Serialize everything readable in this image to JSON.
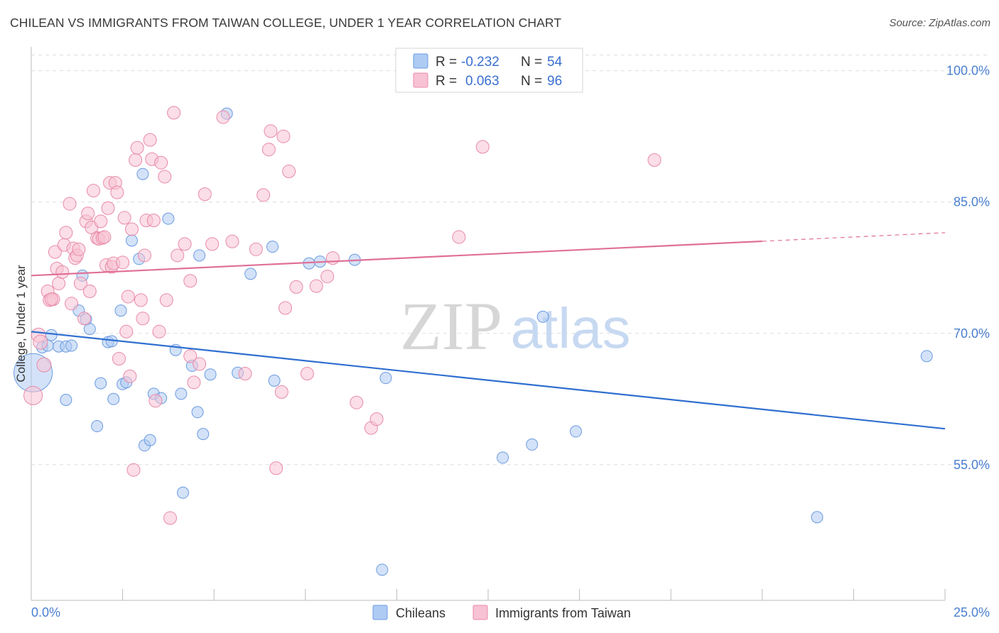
{
  "header": {
    "title": "CHILEAN VS IMMIGRANTS FROM TAIWAN COLLEGE, UNDER 1 YEAR CORRELATION CHART",
    "source": "Source: ZipAtlas.com"
  },
  "watermark": {
    "zip": "ZIP",
    "atlas": "atlas"
  },
  "colors": {
    "blue_fill": "#aecbf3",
    "blue_stroke": "#6b9be0",
    "blue_line": "#2f6fd0",
    "pink_fill": "#f7c2d3",
    "pink_stroke": "#e88aa8",
    "pink_line": "#e07098",
    "tick_text": "#4a7fd0",
    "grid": "#dddddd"
  },
  "legend": {
    "rows": [
      {
        "r_label": "R =",
        "r_value": "-0.232",
        "n_label": "N =",
        "n_value": "54"
      },
      {
        "r_label": "R =",
        "r_value": "0.063",
        "n_label": "N =",
        "n_value": "96"
      }
    ]
  },
  "chart_data": {
    "type": "scatter",
    "title": "CHILEAN VS IMMIGRANTS FROM TAIWAN COLLEGE, UNDER 1 YEAR CORRELATION CHART",
    "xlabel": "",
    "ylabel": "College, Under 1 year",
    "xlim": [
      0,
      25
    ],
    "ylim": [
      39.5,
      102
    ],
    "x_tick_labels": [
      "0.0%",
      "25.0%"
    ],
    "y_ticks": [
      100,
      85,
      70,
      55
    ],
    "y_tick_labels": [
      "100.0%",
      "85.0%",
      "70.0%",
      "55.0%"
    ],
    "series": [
      {
        "name": "Chileans",
        "color": "#aecbf3",
        "r": -0.232,
        "n": 54,
        "trend": {
          "x0": 0.0,
          "y0": 70.2,
          "x1": 25.0,
          "y1": 59.1,
          "dashed_from": null
        },
        "points": [
          [
            0.05,
            65.5,
            26
          ],
          [
            0.3,
            68.4,
            7
          ],
          [
            0.45,
            68.6,
            7
          ],
          [
            0.55,
            69.8,
            7
          ],
          [
            0.75,
            68.5,
            7
          ],
          [
            0.95,
            68.5,
            7
          ],
          [
            1.1,
            68.6,
            7
          ],
          [
            0.95,
            62.4,
            7
          ],
          [
            1.4,
            76.6,
            7
          ],
          [
            1.3,
            72.6,
            7
          ],
          [
            1.5,
            71.6,
            7
          ],
          [
            1.6,
            70.5,
            7
          ],
          [
            1.8,
            59.4,
            7
          ],
          [
            1.9,
            64.3,
            7
          ],
          [
            2.1,
            69.0,
            7
          ],
          [
            2.2,
            69.1,
            7
          ],
          [
            2.25,
            62.5,
            7
          ],
          [
            2.45,
            72.6,
            7
          ],
          [
            2.5,
            64.2,
            7
          ],
          [
            2.6,
            64.4,
            7
          ],
          [
            2.75,
            80.6,
            7
          ],
          [
            2.95,
            78.5,
            7
          ],
          [
            3.05,
            88.2,
            7
          ],
          [
            3.1,
            57.2,
            7
          ],
          [
            3.25,
            57.8,
            7
          ],
          [
            3.35,
            63.1,
            7
          ],
          [
            3.55,
            62.6,
            7
          ],
          [
            3.75,
            83.1,
            7
          ],
          [
            3.95,
            68.1,
            7
          ],
          [
            4.1,
            63.1,
            7
          ],
          [
            4.15,
            51.8,
            7
          ],
          [
            4.4,
            66.3,
            7
          ],
          [
            4.55,
            61.0,
            7
          ],
          [
            4.6,
            78.9,
            7
          ],
          [
            4.7,
            58.5,
            7
          ],
          [
            4.9,
            65.3,
            7
          ],
          [
            5.35,
            95.1,
            7
          ],
          [
            5.65,
            65.5,
            7
          ],
          [
            6.0,
            76.8,
            7
          ],
          [
            6.6,
            79.9,
            7
          ],
          [
            6.65,
            64.6,
            7
          ],
          [
            7.6,
            78.0,
            7
          ],
          [
            7.9,
            78.2,
            7
          ],
          [
            8.85,
            78.4,
            7
          ],
          [
            9.7,
            64.9,
            7
          ],
          [
            9.6,
            43.0,
            7
          ],
          [
            12.9,
            55.8,
            7
          ],
          [
            13.7,
            57.3,
            7
          ],
          [
            14.0,
            71.9,
            7
          ],
          [
            14.9,
            58.8,
            7
          ],
          [
            21.5,
            49.0,
            7
          ],
          [
            24.5,
            67.4,
            7
          ]
        ]
      },
      {
        "name": "Immigrants from Taiwan",
        "color": "#f7c2d3",
        "r": 0.063,
        "n": 96,
        "trend": {
          "x0": 0.0,
          "y0": 76.6,
          "x1": 25.0,
          "y1": 81.5,
          "dashed_from": 20.0
        },
        "points": [
          [
            0.05,
            62.9,
            12
          ],
          [
            0.2,
            69.8,
            9
          ],
          [
            0.35,
            66.4,
            9
          ],
          [
            0.25,
            69.0,
            9
          ],
          [
            0.45,
            74.8,
            8
          ],
          [
            0.5,
            73.8,
            8
          ],
          [
            0.6,
            73.9,
            8
          ],
          [
            0.55,
            73.9,
            8
          ],
          [
            0.65,
            79.3,
            8
          ],
          [
            0.7,
            77.4,
            8
          ],
          [
            0.75,
            75.7,
            8
          ],
          [
            0.85,
            77.0,
            8
          ],
          [
            0.9,
            80.1,
            8
          ],
          [
            0.95,
            81.5,
            8
          ],
          [
            1.05,
            84.8,
            8
          ],
          [
            1.1,
            73.4,
            8
          ],
          [
            1.15,
            79.7,
            8
          ],
          [
            1.2,
            78.6,
            8
          ],
          [
            1.25,
            78.9,
            8
          ],
          [
            1.3,
            79.6,
            8
          ],
          [
            1.35,
            75.7,
            8
          ],
          [
            1.45,
            71.7,
            8
          ],
          [
            1.5,
            82.8,
            8
          ],
          [
            1.55,
            83.7,
            8
          ],
          [
            1.6,
            74.8,
            8
          ],
          [
            1.65,
            82.1,
            8
          ],
          [
            1.7,
            86.3,
            8
          ],
          [
            1.8,
            80.9,
            8
          ],
          [
            1.85,
            80.8,
            8
          ],
          [
            1.9,
            82.8,
            8
          ],
          [
            1.95,
            80.9,
            8
          ],
          [
            2.0,
            81.0,
            8
          ],
          [
            2.05,
            77.8,
            8
          ],
          [
            2.1,
            84.3,
            8
          ],
          [
            2.15,
            87.2,
            8
          ],
          [
            2.2,
            77.6,
            8
          ],
          [
            2.25,
            78.0,
            8
          ],
          [
            2.3,
            87.2,
            8
          ],
          [
            2.35,
            86.1,
            8
          ],
          [
            2.4,
            67.1,
            8
          ],
          [
            2.5,
            78.1,
            8
          ],
          [
            2.55,
            83.2,
            8
          ],
          [
            2.6,
            70.2,
            8
          ],
          [
            2.65,
            74.2,
            8
          ],
          [
            2.7,
            65.1,
            8
          ],
          [
            2.75,
            81.9,
            8
          ],
          [
            2.8,
            54.4,
            8
          ],
          [
            2.85,
            89.8,
            8
          ],
          [
            2.9,
            91.2,
            8
          ],
          [
            3.0,
            73.8,
            8
          ],
          [
            3.05,
            71.7,
            8
          ],
          [
            3.1,
            78.9,
            8
          ],
          [
            3.15,
            82.9,
            8
          ],
          [
            3.25,
            92.1,
            8
          ],
          [
            3.3,
            89.9,
            8
          ],
          [
            3.35,
            82.9,
            8
          ],
          [
            3.4,
            62.3,
            8
          ],
          [
            3.5,
            70.2,
            8
          ],
          [
            3.55,
            89.5,
            8
          ],
          [
            3.65,
            87.9,
            8
          ],
          [
            3.7,
            73.8,
            8
          ],
          [
            3.8,
            48.9,
            8
          ],
          [
            3.9,
            95.2,
            8
          ],
          [
            4.0,
            78.9,
            8
          ],
          [
            4.2,
            80.2,
            8
          ],
          [
            4.35,
            76.0,
            8
          ],
          [
            4.35,
            67.4,
            8
          ],
          [
            4.45,
            64.4,
            8
          ],
          [
            4.6,
            66.5,
            8
          ],
          [
            4.75,
            85.9,
            8
          ],
          [
            4.95,
            80.2,
            8
          ],
          [
            5.25,
            94.7,
            8
          ],
          [
            5.5,
            80.5,
            8
          ],
          [
            5.85,
            65.4,
            8
          ],
          [
            6.15,
            79.6,
            8
          ],
          [
            6.35,
            85.8,
            8
          ],
          [
            6.5,
            91.0,
            8
          ],
          [
            6.55,
            93.1,
            8
          ],
          [
            6.7,
            54.6,
            8
          ],
          [
            6.85,
            63.3,
            8
          ],
          [
            6.9,
            92.5,
            8
          ],
          [
            6.95,
            72.9,
            8
          ],
          [
            7.05,
            88.5,
            8
          ],
          [
            7.25,
            75.3,
            8
          ],
          [
            7.55,
            65.4,
            8
          ],
          [
            7.8,
            75.4,
            8
          ],
          [
            8.1,
            76.5,
            8
          ],
          [
            8.25,
            78.6,
            8
          ],
          [
            8.9,
            62.1,
            8
          ],
          [
            9.3,
            59.2,
            8
          ],
          [
            9.45,
            60.2,
            8
          ],
          [
            11.7,
            81.0,
            8
          ],
          [
            12.35,
            91.3,
            8
          ],
          [
            17.05,
            89.8,
            8
          ]
        ]
      }
    ]
  }
}
